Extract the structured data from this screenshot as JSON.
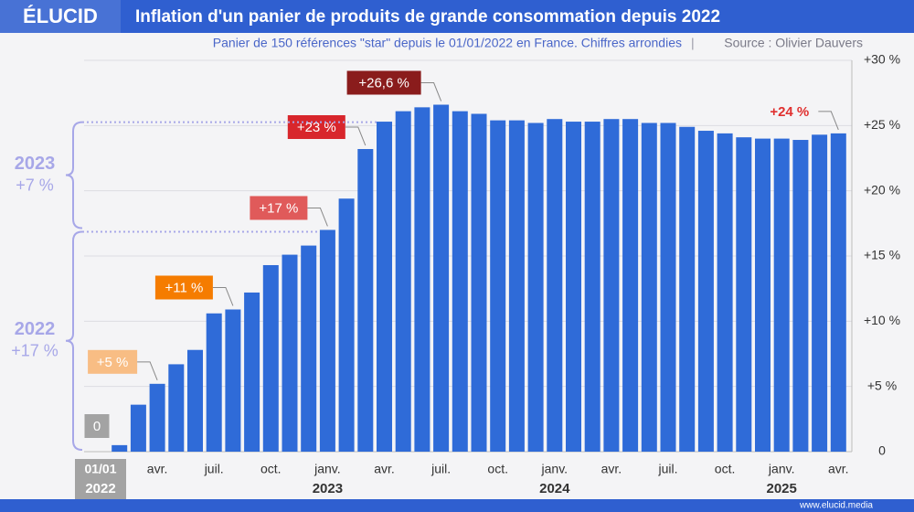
{
  "chart_data": {
    "type": "bar",
    "brand": "ÉLUCID",
    "title": "Inflation d'un panier de produits de grande consommation depuis 2022",
    "subtitle": "Panier de 150 références \"star\" depuis le 01/01/2022 en France. Chiffres arrondies",
    "source": "Source : Olivier Dauvers",
    "footer": "www.elucid.media",
    "categories": [
      "01/01",
      null,
      null,
      "avr.",
      null,
      null,
      "juil.",
      null,
      null,
      "oct.",
      null,
      null,
      "janv.",
      null,
      null,
      "avr.",
      null,
      null,
      "juil.",
      null,
      null,
      "oct.",
      null,
      null,
      "janv.",
      null,
      null,
      "avr.",
      null,
      null,
      "juil.",
      null,
      null,
      "oct.",
      null,
      null,
      "janv.",
      null,
      null,
      "avr."
    ],
    "years": [
      "2022",
      "2023",
      "2024",
      "2025"
    ],
    "values": [
      0,
      0.5,
      3.6,
      5.2,
      6.7,
      7.8,
      10.6,
      10.9,
      12.2,
      14.3,
      15.1,
      15.8,
      17.0,
      19.4,
      23.2,
      25.3,
      26.1,
      26.4,
      26.6,
      26.1,
      25.9,
      25.4,
      25.4,
      25.2,
      25.5,
      25.3,
      25.3,
      25.5,
      25.5,
      25.2,
      25.2,
      24.9,
      24.6,
      24.4,
      24.1,
      24.0,
      24.0,
      23.9,
      24.3,
      24.4
    ],
    "color": "#2f6bd8",
    "ylim": [
      0,
      30
    ],
    "yticks": [
      0,
      {
        "value": 5,
        "label": "+5 %"
      },
      {
        "value": 10,
        "label": "+10 %"
      },
      {
        "value": 15,
        "label": "+15 %"
      },
      {
        "value": 20,
        "label": "+20 %"
      },
      {
        "value": 25,
        "label": "+25 %"
      },
      {
        "value": 30,
        "label": "+30 %"
      }
    ],
    "grid": true,
    "annotations": [
      {
        "label": "0",
        "point": 0,
        "color": "#a3a3a3"
      },
      {
        "label": "+5 %",
        "point": 3,
        "color": "#f8bd84"
      },
      {
        "label": "+11 %",
        "point": 7,
        "color": "#f57c00"
      },
      {
        "label": "+17 %",
        "point": 12,
        "color": "#e05a5a"
      },
      {
        "label": "+23 %",
        "point": 14,
        "color": "#d8262c"
      },
      {
        "label": "+26,6 %",
        "point": 18,
        "color": "#8a1c1c"
      },
      {
        "label": "+24 %",
        "point": 39,
        "color": "#e0302f",
        "boxed": false
      }
    ],
    "brackets": [
      {
        "year": "2023",
        "change": "+7 %",
        "from": 17,
        "to": 25.4
      },
      {
        "year": "2022",
        "change": "+17 %",
        "from": 0,
        "to": 17
      }
    ]
  }
}
